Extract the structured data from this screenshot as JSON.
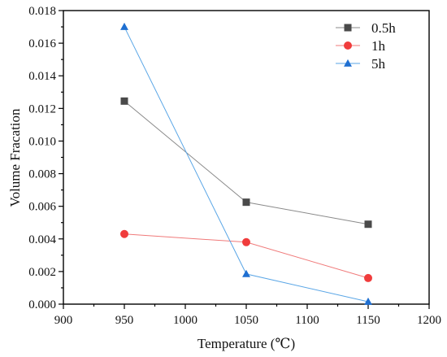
{
  "chart_data": {
    "type": "line",
    "xlabel": "Temperature (℃)",
    "ylabel": "Volume Fracation",
    "xlim": [
      900,
      1200
    ],
    "ylim": [
      0,
      0.018
    ],
    "x_ticks": [
      "900",
      "950",
      "1000",
      "1050",
      "1100",
      "1150",
      "1200"
    ],
    "y_ticks": [
      "0.000",
      "0.002",
      "0.004",
      "0.006",
      "0.008",
      "0.010",
      "0.012",
      "0.014",
      "0.016",
      "0.018"
    ],
    "legend_position": "top-right",
    "grid": false,
    "series": [
      {
        "name": "0.5h",
        "marker": "square",
        "color": "#4a4a4a",
        "line_color": "#8a8a8a",
        "x": [
          950,
          1050,
          1150
        ],
        "y": [
          0.01245,
          0.00625,
          0.0049
        ]
      },
      {
        "name": "1h",
        "marker": "circle",
        "color": "#f03c3c",
        "line_color": "#f07a7a",
        "x": [
          950,
          1050,
          1150
        ],
        "y": [
          0.0043,
          0.0038,
          0.0016
        ]
      },
      {
        "name": "5h",
        "marker": "triangle",
        "color": "#1f6fd1",
        "line_color": "#5aa6e6",
        "x": [
          950,
          1050,
          1150
        ],
        "y": [
          0.017,
          0.00185,
          0.00015
        ]
      }
    ]
  }
}
